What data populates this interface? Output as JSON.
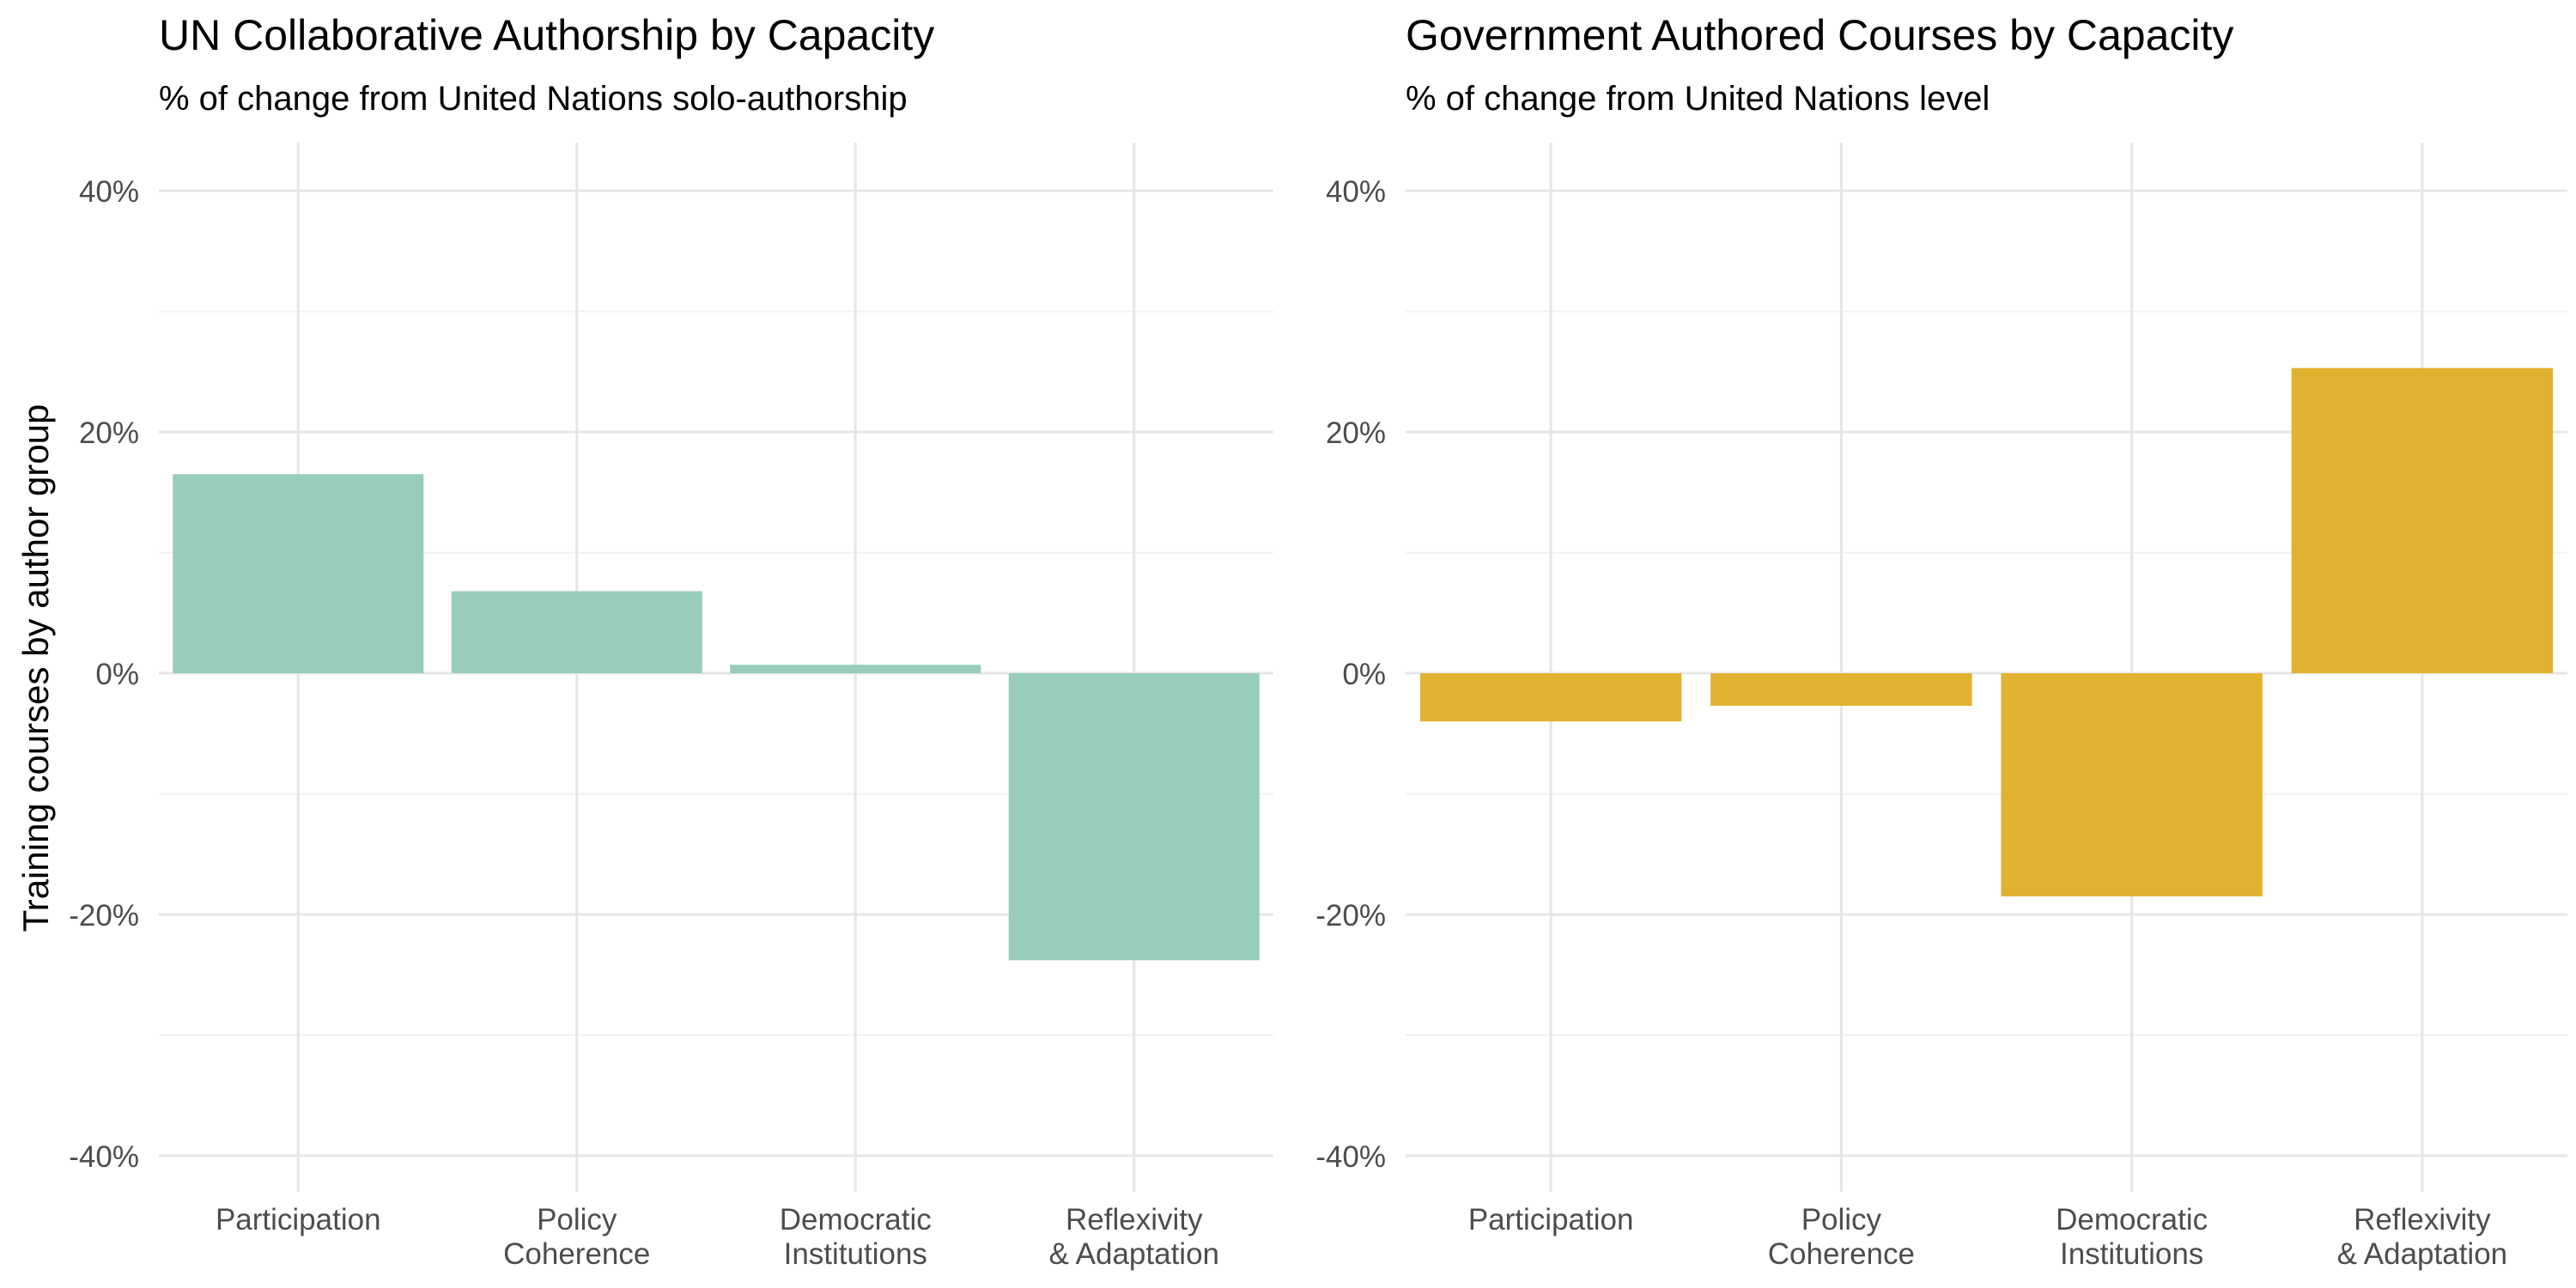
{
  "figure": {
    "ylabel": "Training courses by author group"
  },
  "chart_data": [
    {
      "type": "bar",
      "title": "UN Collaborative Authorship by Capacity",
      "subtitle": "% of change from United Nations solo-authorship",
      "xlabel": "",
      "ylabel": "Training courses by author group",
      "categories": [
        "Participation",
        "Policy\nCoherence",
        "Democratic\nInstitutions",
        "Reflexivity\n& Adaptation"
      ],
      "values": [
        16.5,
        6.8,
        0.7,
        -23.8
      ],
      "value_unit": "%",
      "ylim": [
        -43,
        44
      ],
      "yticks": [
        -40,
        -20,
        0,
        20,
        40
      ],
      "ytick_labels": [
        "-40%",
        "-20%",
        "0%",
        "20%",
        "40%"
      ],
      "color": "#97cdb9",
      "grid": true
    },
    {
      "type": "bar",
      "title": "Government Authored Courses by Capacity",
      "subtitle": "% of change from United Nations level",
      "xlabel": "",
      "ylabel": "",
      "categories": [
        "Participation",
        "Policy\nCoherence",
        "Democratic\nInstitutions",
        "Reflexivity\n& Adaptation"
      ],
      "values": [
        -4.0,
        -2.7,
        -18.5,
        25.3
      ],
      "value_unit": "%",
      "ylim": [
        -43,
        44
      ],
      "yticks": [
        -40,
        -20,
        0,
        20,
        40
      ],
      "ytick_labels": [
        "-40%",
        "-20%",
        "0%",
        "20%",
        "40%"
      ],
      "color": "#e1b22f",
      "grid": true
    }
  ]
}
